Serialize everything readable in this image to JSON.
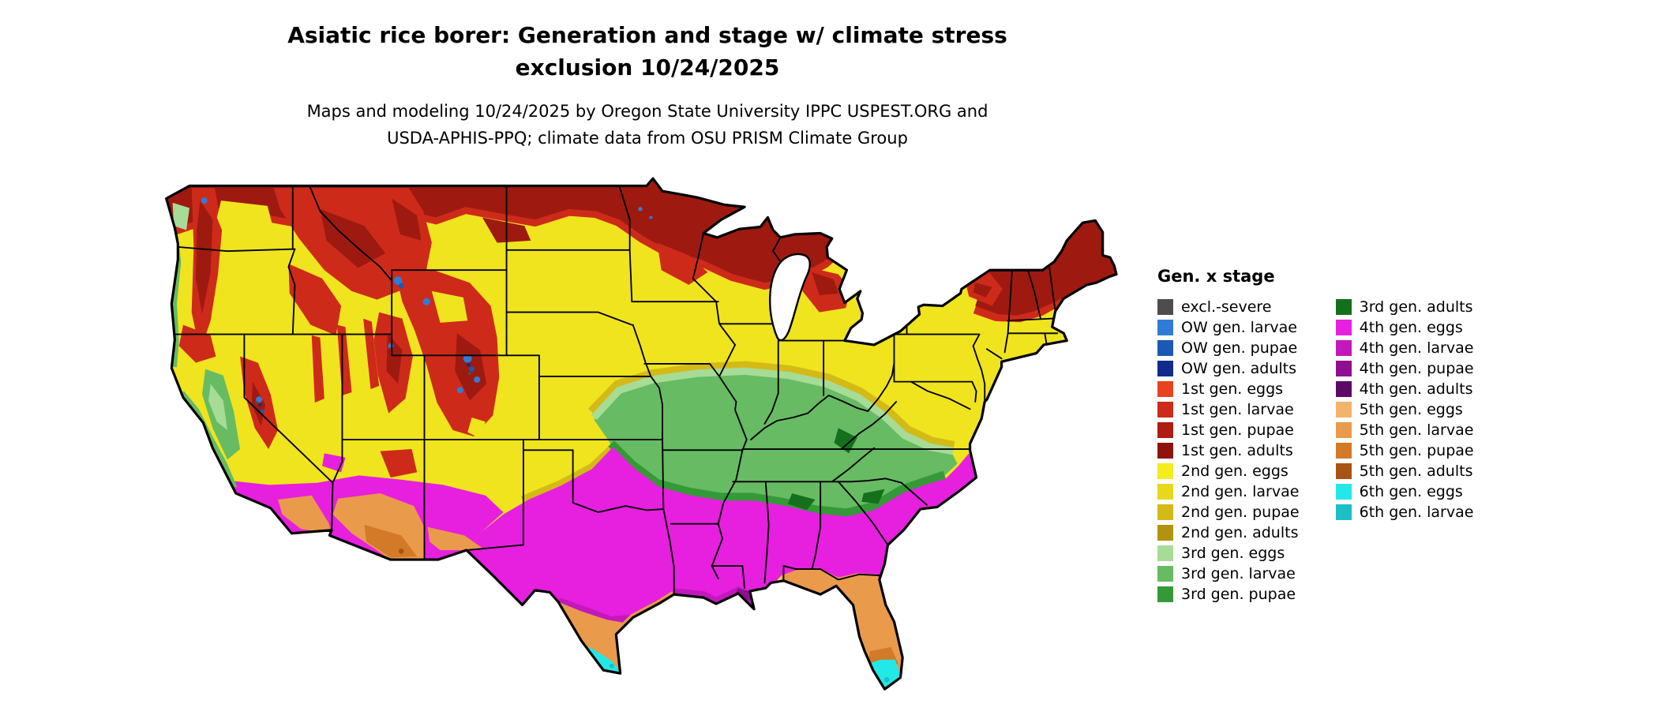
{
  "header": {
    "title_line1": "Asiatic rice borer: Generation and stage w/ climate stress",
    "title_line2": "exclusion 10/24/2025",
    "subtitle_line1": "Maps and modeling 10/24/2025 by Oregon State University IPPC USPEST.ORG and",
    "subtitle_line2": "USDA-APHIS-PPQ; climate data from OSU PRISM Climate Group"
  },
  "legend": {
    "title": "Gen. x stage",
    "column1": [
      {
        "label": "excl.-severe",
        "color": "#4D4D4D"
      },
      {
        "label": "OW gen. larvae",
        "color": "#2F7CD6"
      },
      {
        "label": "OW gen. pupae",
        "color": "#1C58B5"
      },
      {
        "label": "OW gen. adults",
        "color": "#122A8C"
      },
      {
        "label": "1st gen. eggs",
        "color": "#E8431F"
      },
      {
        "label": "1st gen. larvae",
        "color": "#CE2A1A"
      },
      {
        "label": "1st gen. pupae",
        "color": "#AE1C12"
      },
      {
        "label": "1st gen. adults",
        "color": "#8C140C"
      },
      {
        "label": "2nd gen. eggs",
        "color": "#F4EC1F"
      },
      {
        "label": "2nd gen. larvae",
        "color": "#E7D81B"
      },
      {
        "label": "2nd gen. pupae",
        "color": "#D3BA17"
      },
      {
        "label": "2nd gen. adults",
        "color": "#B39210"
      },
      {
        "label": "3rd gen. eggs",
        "color": "#A6DC96"
      },
      {
        "label": "3rd gen. larvae",
        "color": "#67BB63"
      },
      {
        "label": "3rd gen. pupae",
        "color": "#349A37"
      }
    ],
    "column2": [
      {
        "label": "3rd gen. adults",
        "color": "#14701C"
      },
      {
        "label": "4th gen. eggs",
        "color": "#E620DE"
      },
      {
        "label": "4th gen. larvae",
        "color": "#C318BC"
      },
      {
        "label": "4th gen. pupae",
        "color": "#8F0F93"
      },
      {
        "label": "4th gen. adults",
        "color": "#5C0A64"
      },
      {
        "label": "5th gen. eggs",
        "color": "#F2B36B"
      },
      {
        "label": "5th gen. larvae",
        "color": "#E99A4B"
      },
      {
        "label": "5th gen. pupae",
        "color": "#D27A27"
      },
      {
        "label": "5th gen. adults",
        "color": "#A85415"
      },
      {
        "label": "6th gen. eggs",
        "color": "#23E8E8"
      },
      {
        "label": "6th gen. larvae",
        "color": "#1CBFC4"
      }
    ]
  },
  "map": {
    "type": "choropleth raster map of the continental United States colored by pest generation and life stage"
  }
}
